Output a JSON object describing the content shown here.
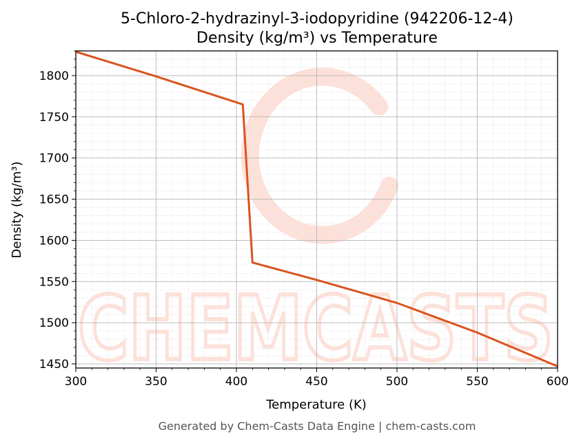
{
  "chart_data": {
    "type": "line",
    "title": "5-Chloro-2-hydrazinyl-3-iodopyridine (942206-12-4)",
    "subtitle": "Density (kg/m³) vs Temperature",
    "xlabel": "Temperature (K)",
    "ylabel": "Density (kg/m³)",
    "xlim": [
      300,
      600
    ],
    "ylim": [
      1445,
      1830
    ],
    "xticks": [
      300,
      350,
      400,
      450,
      500,
      550,
      600
    ],
    "yticks": [
      1450,
      1500,
      1550,
      1600,
      1650,
      1700,
      1750,
      1800
    ],
    "grid": true,
    "series": [
      {
        "color": "#d9531e",
        "x": [
          300,
          350,
          404,
          410,
          450,
          500,
          550,
          600
        ],
        "y": [
          1829,
          1799,
          1765,
          1573,
          1552,
          1524,
          1488,
          1447
        ]
      }
    ],
    "footer": "Generated by Chem-Casts Data Engine | chem-casts.com",
    "watermark": "CHEMCASTS"
  }
}
